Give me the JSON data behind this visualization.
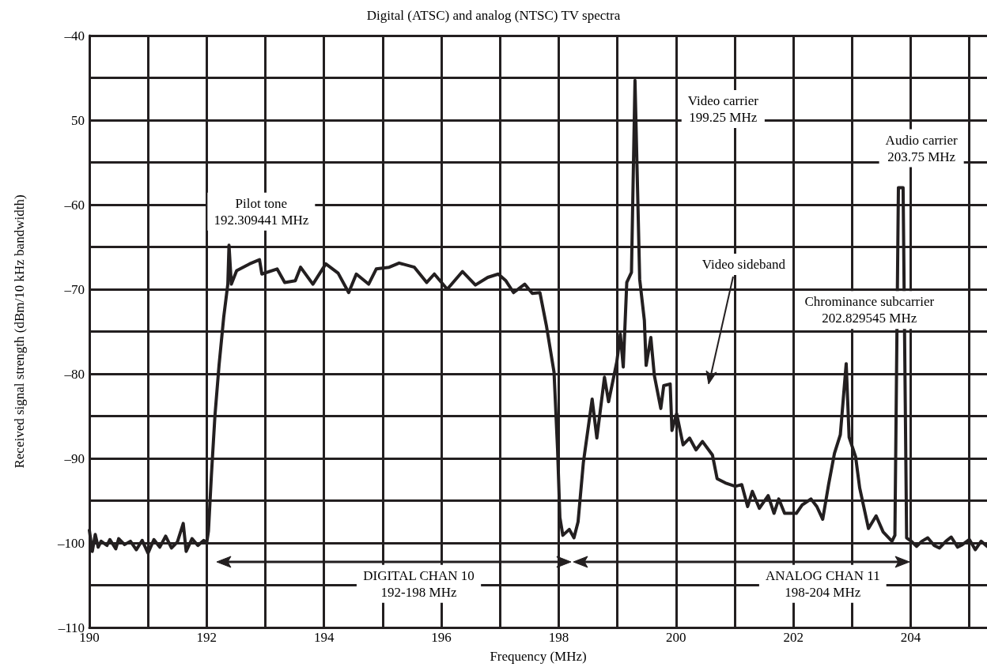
{
  "chart_data": {
    "type": "line",
    "title": "Digital (ATSC) and analog (NTSC) TV spectra",
    "xlabel": "Frequency (MHz)",
    "ylabel": "Received signal strength (dBm/10 kHz bandwidth)",
    "xlim": [
      190,
      205.3
    ],
    "ylim": [
      -110,
      -40
    ],
    "xticks": [
      190,
      {
        "value": 191,
        "label": null
      },
      192,
      {
        "value": 193,
        "label": null
      },
      194,
      {
        "value": 195,
        "label": null
      },
      196,
      {
        "value": 197,
        "label": null
      },
      198,
      {
        "value": 199,
        "label": null
      },
      200,
      {
        "value": 201,
        "label": null
      },
      202,
      {
        "value": 203,
        "label": null
      },
      204,
      {
        "value": 205,
        "label": null
      }
    ],
    "yticks": [
      {
        "value": -110,
        "label": "–110"
      },
      {
        "value": -105,
        "label": null
      },
      {
        "value": -100,
        "label": "–100"
      },
      {
        "value": -95,
        "label": null
      },
      {
        "value": -90,
        "label": "–90"
      },
      {
        "value": -85,
        "label": null
      },
      {
        "value": -80,
        "label": "–80"
      },
      {
        "value": -75,
        "label": null
      },
      {
        "value": -70,
        "label": "–70"
      },
      {
        "value": -65,
        "label": null
      },
      {
        "value": -60,
        "label": "–60"
      },
      {
        "value": -55,
        "label": null
      },
      {
        "value": -50,
        "label": "50"
      },
      {
        "value": -45,
        "label": null
      },
      {
        "value": -40,
        "label": "–40"
      }
    ],
    "grid": true,
    "series": [
      {
        "color": "#231f20",
        "x": [
          190.0,
          190.05,
          190.1,
          190.15,
          190.2,
          190.3,
          190.35,
          190.45,
          190.5,
          190.6,
          190.7,
          190.8,
          190.9,
          191.0,
          191.1,
          191.2,
          191.3,
          191.4,
          191.5,
          191.6,
          191.65,
          191.75,
          191.85,
          191.95,
          192.0,
          192.03,
          192.08,
          192.14,
          192.21,
          192.29,
          192.36,
          192.38,
          192.42,
          192.51,
          192.73,
          192.9,
          192.94,
          193.2,
          193.33,
          193.51,
          193.6,
          193.81,
          194.03,
          194.24,
          194.42,
          194.55,
          194.76,
          194.89,
          195.11,
          195.28,
          195.54,
          195.75,
          195.88,
          196.1,
          196.36,
          196.58,
          196.79,
          196.97,
          197.1,
          197.23,
          197.42,
          197.55,
          197.68,
          197.79,
          197.92,
          197.98,
          198.02,
          198.07,
          198.18,
          198.26,
          198.33,
          198.42,
          198.57,
          198.65,
          198.78,
          198.85,
          198.99,
          199.05,
          199.1,
          199.16,
          199.24,
          199.3,
          199.38,
          199.46,
          199.49,
          199.57,
          199.63,
          199.74,
          199.79,
          199.9,
          199.93,
          200.01,
          200.12,
          200.23,
          200.34,
          200.45,
          200.62,
          200.7,
          200.84,
          201.01,
          201.12,
          201.22,
          201.3,
          201.42,
          201.57,
          201.67,
          201.75,
          201.85,
          202.05,
          202.15,
          202.3,
          202.4,
          202.5,
          202.6,
          202.7,
          202.8,
          202.9,
          202.95,
          203.06,
          203.13,
          203.28,
          203.41,
          203.53,
          203.68,
          203.73,
          203.79,
          203.87,
          203.93,
          204.01,
          204.1,
          204.19,
          204.29,
          204.4,
          204.49,
          204.6,
          204.69,
          204.8,
          204.88,
          205.0,
          205.1,
          205.2,
          205.3
        ],
        "values": [
          -98.5,
          -101,
          -99,
          -100.5,
          -99.8,
          -100.3,
          -99.6,
          -100.7,
          -99.5,
          -100.2,
          -99.8,
          -100.8,
          -99.7,
          -101.2,
          -99.6,
          -100.5,
          -99.2,
          -100.6,
          -99.9,
          -97.7,
          -101,
          -99.5,
          -100.3,
          -99.7,
          -100,
          -98.6,
          -92,
          -85,
          -79,
          -73.3,
          -69.4,
          -64.8,
          -69.4,
          -67.8,
          -67,
          -66.5,
          -68.2,
          -67.6,
          -69.2,
          -69,
          -67.4,
          -69.4,
          -67,
          -68.1,
          -70.4,
          -68.2,
          -69.4,
          -67.6,
          -67.4,
          -66.9,
          -67.4,
          -69.2,
          -68.2,
          -70,
          -67.9,
          -69.5,
          -68.6,
          -68.2,
          -69,
          -70.4,
          -69.4,
          -70.5,
          -70.4,
          -74.3,
          -79.8,
          -88.9,
          -97,
          -99.1,
          -98.4,
          -99.4,
          -97.5,
          -90.5,
          -83,
          -87.6,
          -80.4,
          -83.3,
          -78.6,
          -75.3,
          -79.2,
          -69.2,
          -68,
          -45.3,
          -68.8,
          -73.7,
          -79,
          -75.7,
          -80.2,
          -84.1,
          -81.4,
          -81.2,
          -86.7,
          -84.7,
          -88.4,
          -87.6,
          -89,
          -88,
          -89.6,
          -92.4,
          -92.9,
          -93.3,
          -93.1,
          -95.7,
          -93.9,
          -95.9,
          -94.4,
          -96.5,
          -94.8,
          -96.5,
          -96.5,
          -95.5,
          -94.8,
          -95.7,
          -97.2,
          -93.1,
          -89.4,
          -87.2,
          -78.8,
          -87.5,
          -89.8,
          -93.5,
          -98.3,
          -96.8,
          -98.7,
          -99.8,
          -99.1,
          -58,
          -58,
          -99.4,
          -99.8,
          -100.4,
          -99.8,
          -99.4,
          -100.3,
          -100.6,
          -99.8,
          -99.3,
          -100.5,
          -100.2,
          -99.6,
          -100.8,
          -99.8,
          -100.4
        ]
      }
    ],
    "annotations": [
      "Pilot tone\n192.309441 MHz",
      "Video carrier\n199.25 MHz",
      "Audio carrier\n203.75 MHz",
      "Video sideband",
      "Chrominance subcarrier\n202.829545 MHz",
      "DIGITAL CHAN 10\n192-198 MHz",
      "ANALOG CHAN 11\n198-204 MHz"
    ]
  }
}
